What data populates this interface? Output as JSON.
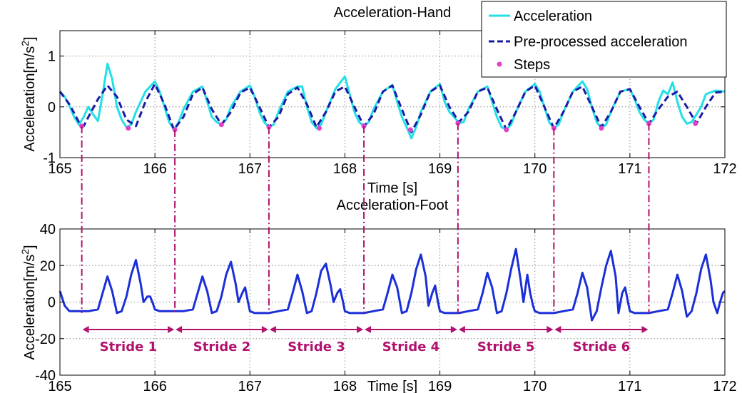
{
  "chart_data": [
    {
      "type": "line",
      "title": "Acceleration-Hand",
      "xlabel": "Time [s]",
      "ylabel": "Acceleration[m/s²]",
      "ylabel_main": "Acceleration[m/s",
      "ylabel_sup": "2",
      "ylabel_end": "]",
      "xlim": [
        165,
        172
      ],
      "ylim": [
        -1,
        1.5
      ],
      "xticks": [
        165,
        166,
        167,
        168,
        169,
        170,
        171,
        172
      ],
      "xtick_labels": [
        "165",
        "166",
        "167",
        "168",
        "169",
        "170",
        "171",
        "172"
      ],
      "yticks": [
        -1,
        0,
        1
      ],
      "ytick_labels": [
        "-1",
        "0",
        "1"
      ],
      "grid": true,
      "legend_position": "top-right",
      "series": [
        {
          "name": "Acceleration",
          "color": "#22e0e6",
          "style": "solid",
          "x": [
            165.0,
            165.05,
            165.1,
            165.15,
            165.2,
            165.25,
            165.3,
            165.35,
            165.4,
            165.45,
            165.5,
            165.55,
            165.6,
            165.65,
            165.7,
            165.75,
            165.8,
            165.9,
            166.0,
            166.05,
            166.1,
            166.15,
            166.2,
            166.25,
            166.3,
            166.4,
            166.5,
            166.55,
            166.6,
            166.65,
            166.7,
            166.75,
            166.8,
            166.9,
            167.0,
            167.05,
            167.1,
            167.15,
            167.2,
            167.25,
            167.3,
            167.4,
            167.5,
            167.55,
            167.6,
            167.65,
            167.7,
            167.75,
            167.8,
            167.9,
            168.0,
            168.05,
            168.1,
            168.15,
            168.2,
            168.25,
            168.3,
            168.4,
            168.5,
            168.55,
            168.6,
            168.65,
            168.7,
            168.75,
            168.8,
            168.9,
            169.0,
            169.05,
            169.1,
            169.15,
            169.2,
            169.25,
            169.3,
            169.4,
            169.5,
            169.55,
            169.6,
            169.65,
            169.7,
            169.75,
            169.8,
            169.9,
            170.0,
            170.05,
            170.1,
            170.15,
            170.2,
            170.25,
            170.3,
            170.4,
            170.5,
            170.55,
            170.6,
            170.65,
            170.7,
            170.75,
            170.8,
            170.9,
            171.0,
            171.05,
            171.1,
            171.15,
            171.2,
            171.25,
            171.3,
            171.35,
            171.4,
            171.45,
            171.5,
            171.55,
            171.6,
            171.65,
            171.7,
            171.75,
            171.8,
            171.9,
            172.0
          ],
          "y": [
            0.3,
            0.2,
            0.02,
            -0.2,
            -0.35,
            -0.2,
            0.0,
            -0.15,
            -0.28,
            0.25,
            0.85,
            0.55,
            0.0,
            -0.25,
            -0.4,
            -0.35,
            -0.1,
            0.3,
            0.5,
            0.3,
            0.0,
            -0.3,
            -0.45,
            -0.3,
            -0.05,
            0.3,
            0.4,
            0.1,
            -0.2,
            -0.3,
            -0.35,
            -0.25,
            0.0,
            0.3,
            0.42,
            0.2,
            -0.1,
            -0.3,
            -0.4,
            -0.35,
            -0.1,
            0.3,
            0.4,
            0.4,
            0.0,
            -0.3,
            -0.42,
            -0.35,
            -0.1,
            0.35,
            0.6,
            0.25,
            -0.1,
            -0.3,
            -0.38,
            -0.3,
            -0.05,
            0.3,
            0.43,
            0.1,
            -0.2,
            -0.4,
            -0.62,
            -0.4,
            -0.1,
            0.3,
            0.45,
            0.1,
            -0.1,
            -0.2,
            -0.32,
            -0.3,
            -0.05,
            0.3,
            0.4,
            0.1,
            -0.2,
            -0.4,
            -0.45,
            -0.35,
            -0.1,
            0.3,
            0.45,
            0.3,
            0.0,
            -0.3,
            -0.42,
            -0.35,
            -0.1,
            0.3,
            0.5,
            0.35,
            0.0,
            -0.3,
            -0.42,
            -0.35,
            -0.1,
            0.3,
            0.35,
            0.15,
            -0.1,
            -0.25,
            -0.33,
            -0.25,
            0.1,
            0.32,
            0.25,
            0.48,
            0.1,
            -0.2,
            -0.33,
            -0.3,
            -0.15,
            0.0,
            0.25,
            0.32,
            0.3
          ]
        },
        {
          "name": "Pre-processed acceleration",
          "color": "#1a1aa6",
          "style": "dashed",
          "x": [
            165.0,
            165.1,
            165.2,
            165.25,
            165.3,
            165.4,
            165.5,
            165.6,
            165.7,
            165.8,
            165.9,
            166.0,
            166.1,
            166.2,
            166.3,
            166.4,
            166.5,
            166.6,
            166.7,
            166.8,
            166.9,
            167.0,
            167.1,
            167.2,
            167.3,
            167.4,
            167.5,
            167.6,
            167.7,
            167.8,
            167.9,
            168.0,
            168.1,
            168.2,
            168.3,
            168.4,
            168.5,
            168.6,
            168.7,
            168.8,
            168.9,
            169.0,
            169.1,
            169.2,
            169.3,
            169.4,
            169.5,
            169.6,
            169.7,
            169.8,
            169.9,
            170.0,
            170.1,
            170.2,
            170.3,
            170.4,
            170.5,
            170.6,
            170.7,
            170.8,
            170.9,
            171.0,
            171.1,
            171.2,
            171.3,
            171.4,
            171.5,
            171.6,
            171.7,
            171.8,
            171.9,
            172.0
          ],
          "y": [
            0.3,
            0.05,
            -0.3,
            -0.38,
            -0.2,
            0.15,
            0.42,
            0.2,
            -0.25,
            -0.38,
            0.1,
            0.45,
            0.05,
            -0.45,
            -0.2,
            0.25,
            0.38,
            -0.05,
            -0.35,
            -0.1,
            0.28,
            0.38,
            0.0,
            -0.4,
            -0.2,
            0.25,
            0.38,
            0.05,
            -0.4,
            -0.1,
            0.3,
            0.4,
            0.0,
            -0.38,
            -0.15,
            0.3,
            0.42,
            -0.05,
            -0.5,
            -0.15,
            0.3,
            0.42,
            0.0,
            -0.3,
            -0.1,
            0.3,
            0.38,
            -0.05,
            -0.45,
            -0.1,
            0.3,
            0.42,
            0.0,
            -0.42,
            -0.1,
            0.3,
            0.4,
            0.0,
            -0.4,
            -0.1,
            0.3,
            0.35,
            0.0,
            -0.33,
            -0.05,
            0.2,
            0.3,
            0.0,
            -0.33,
            0.0,
            0.28,
            0.3
          ]
        },
        {
          "name": "Steps",
          "color": "#e040c8",
          "style": "markers",
          "x": [
            165.23,
            165.72,
            166.21,
            166.7,
            167.2,
            167.73,
            168.2,
            168.69,
            169.19,
            169.7,
            170.2,
            170.7,
            171.2,
            171.69
          ],
          "y": [
            -0.38,
            -0.42,
            -0.45,
            -0.35,
            -0.4,
            -0.42,
            -0.38,
            -0.45,
            -0.32,
            -0.45,
            -0.42,
            -0.42,
            -0.33,
            -0.33
          ]
        }
      ]
    },
    {
      "type": "line",
      "title": "Acceleration-Foot",
      "xlabel": "Time [s]",
      "ylabel": "Acceleration[m/s²]",
      "ylabel_main": "Acceleration[m/s",
      "ylabel_sup": "2",
      "ylabel_end": "]",
      "xlim": [
        165,
        172
      ],
      "ylim": [
        -40,
        40
      ],
      "xticks": [
        165,
        166,
        167,
        168,
        169,
        170,
        171,
        172
      ],
      "xtick_labels": [
        "165",
        "166",
        "167",
        "168",
        "169",
        "170",
        "171",
        "172"
      ],
      "yticks": [
        -40,
        -20,
        0,
        20,
        40
      ],
      "ytick_labels": [
        "-40",
        "-20",
        "0",
        "20",
        "40"
      ],
      "grid": true,
      "series": [
        {
          "color": "#1b2fd8",
          "style": "solid",
          "x": [
            165.0,
            165.05,
            165.1,
            165.2,
            165.3,
            165.4,
            165.45,
            165.5,
            165.55,
            165.6,
            165.65,
            165.7,
            165.75,
            165.8,
            165.85,
            165.88,
            165.92,
            165.95,
            165.98,
            166.0,
            166.05,
            166.1,
            166.2,
            166.3,
            166.4,
            166.45,
            166.5,
            166.55,
            166.6,
            166.65,
            166.7,
            166.75,
            166.8,
            166.85,
            166.88,
            166.92,
            166.95,
            166.98,
            167.0,
            167.05,
            167.1,
            167.2,
            167.3,
            167.4,
            167.45,
            167.5,
            167.55,
            167.6,
            167.65,
            167.7,
            167.75,
            167.8,
            167.85,
            167.88,
            167.92,
            167.95,
            167.98,
            168.0,
            168.05,
            168.1,
            168.2,
            168.3,
            168.4,
            168.45,
            168.5,
            168.55,
            168.6,
            168.65,
            168.7,
            168.75,
            168.8,
            168.85,
            168.88,
            168.92,
            168.95,
            168.98,
            169.0,
            169.05,
            169.1,
            169.2,
            169.3,
            169.4,
            169.45,
            169.5,
            169.55,
            169.6,
            169.65,
            169.7,
            169.75,
            169.8,
            169.85,
            169.88,
            169.92,
            169.95,
            169.98,
            170.0,
            170.05,
            170.1,
            170.2,
            170.3,
            170.4,
            170.45,
            170.5,
            170.55,
            170.6,
            170.65,
            170.7,
            170.75,
            170.8,
            170.85,
            170.88,
            170.92,
            170.95,
            170.98,
            171.0,
            171.05,
            171.1,
            171.2,
            171.3,
            171.4,
            171.45,
            171.5,
            171.55,
            171.6,
            171.65,
            171.7,
            171.75,
            171.8,
            171.85,
            171.88,
            171.92,
            171.95,
            171.98,
            172.0
          ],
          "y": [
            6,
            -2,
            -5,
            -5,
            -5,
            -4,
            5,
            14,
            6,
            -6,
            -5,
            3,
            15,
            23,
            10,
            0,
            3,
            3,
            -1,
            -4,
            -5,
            -5,
            -5,
            -5,
            -4,
            5,
            14,
            6,
            -6,
            -5,
            3,
            15,
            22,
            10,
            0,
            5,
            8,
            0,
            -5,
            -6,
            -6,
            -6,
            -5,
            -4,
            5,
            15,
            6,
            -6,
            -5,
            5,
            17,
            21,
            9,
            0,
            5,
            7,
            0,
            -5,
            -6,
            -6,
            -6,
            -5,
            -4,
            5,
            15,
            8,
            -6,
            -5,
            5,
            18,
            26,
            14,
            -2,
            5,
            9,
            0,
            -5,
            -6,
            -6,
            -6,
            -5,
            -4,
            5,
            16,
            8,
            -6,
            -5,
            5,
            18,
            29,
            12,
            0,
            15,
            5,
            -2,
            -5,
            -6,
            -6,
            -6,
            -5,
            -4,
            5,
            16,
            8,
            -10,
            -5,
            8,
            20,
            28,
            14,
            -6,
            5,
            8,
            0,
            -5,
            -6,
            -6,
            -6,
            -5,
            -4,
            5,
            15,
            6,
            -8,
            -5,
            5,
            18,
            26,
            12,
            0,
            -6,
            0,
            5,
            6
          ]
        }
      ],
      "stride_boundaries": [
        165.23,
        166.21,
        167.2,
        168.2,
        169.19,
        170.2,
        171.2
      ],
      "strides": [
        "Stride 1",
        "Stride 2",
        "Stride 3",
        "Stride 4",
        "Stride 5",
        "Stride 6"
      ],
      "stride_arrow_y": -15,
      "stride_color": "#b0126e"
    }
  ]
}
